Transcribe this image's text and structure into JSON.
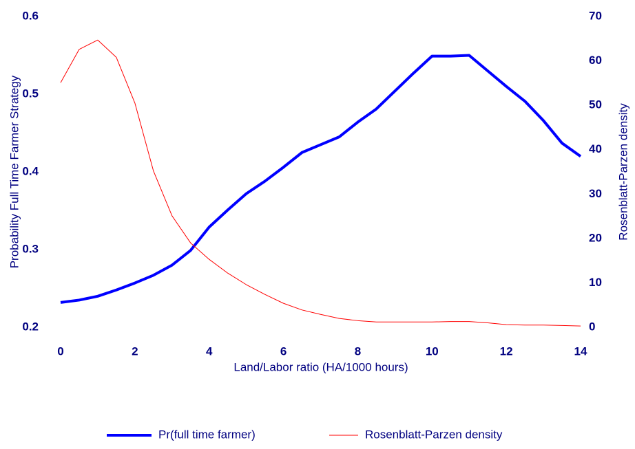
{
  "chart_data": {
    "type": "line",
    "x_label": "Land/Labor ratio (HA/1000 hours)",
    "y_label": "Probability Full Time Farmer Strategy",
    "y2_label": "Rosenblatt-Parzen density",
    "x": [
      0,
      0.5,
      1,
      1.5,
      2,
      2.5,
      3,
      3.5,
      4,
      4.5,
      5,
      5.5,
      6,
      6.5,
      7,
      7.5,
      8,
      8.5,
      9,
      9.5,
      10,
      10.5,
      11,
      11.5,
      12,
      12.5,
      13,
      13.5,
      14
    ],
    "series": [
      {
        "name": "Pr(full time farmer)",
        "color": "#0000ff",
        "axis": "y",
        "values": [
          0.232,
          0.235,
          0.24,
          0.248,
          0.257,
          0.267,
          0.28,
          0.299,
          0.329,
          0.351,
          0.372,
          0.388,
          0.406,
          0.425,
          0.435,
          0.445,
          0.464,
          0.481,
          0.504,
          0.527,
          0.549,
          0.549,
          0.55,
          0.53,
          0.51,
          0.491,
          0.466,
          0.437,
          0.42
        ]
      },
      {
        "name": "Rosenblatt-Parzen density",
        "color": "#ff0000",
        "axis": "y2",
        "values": [
          55.1,
          62.6,
          64.7,
          60.8,
          50.5,
          35.2,
          25.1,
          19.0,
          15.3,
          12.2,
          9.6,
          7.4,
          5.4,
          3.9,
          2.9,
          2.0,
          1.5,
          1.2,
          1.2,
          1.2,
          1.2,
          1.3,
          1.3,
          1.0,
          0.6,
          0.5,
          0.5,
          0.4,
          0.3
        ]
      }
    ],
    "xlim": [
      0,
      14
    ],
    "xticks": [
      0,
      2,
      4,
      6,
      8,
      10,
      12,
      14
    ],
    "ylim": [
      0.2,
      0.6
    ],
    "yticks": [
      0.2,
      0.3,
      0.4,
      0.5,
      0.6
    ],
    "y2lim": [
      0,
      70
    ],
    "y2ticks": [
      0,
      10,
      20,
      30,
      40,
      50,
      60,
      70
    ],
    "grid": false,
    "legend": "bottom"
  }
}
